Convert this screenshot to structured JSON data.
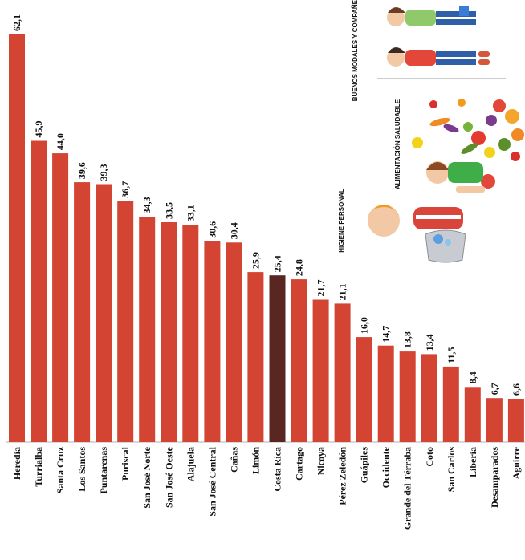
{
  "chart_data": {
    "type": "bar",
    "orientation": "vertical",
    "categories": [
      "Heredia",
      "Turrialba",
      "Santa Cruz",
      "Los Santos",
      "Puntarenas",
      "Puriscal",
      "San José Norte",
      "San José Oeste",
      "Alajuela",
      "San José Central",
      "Cañas",
      "Limón",
      "Costa Rica",
      "Cartago",
      "Nicoya",
      "Pérez Zeledón",
      "Guápiles",
      "Occidente",
      "Grande del Térraba",
      "Coto",
      "San Carlos",
      "Liberia",
      "Desamparados",
      "Aguirre"
    ],
    "values": [
      62.1,
      45.9,
      44.0,
      39.6,
      39.3,
      36.7,
      34.3,
      33.5,
      33.1,
      30.6,
      30.4,
      25.9,
      25.4,
      24.8,
      21.7,
      21.1,
      16.0,
      14.7,
      13.8,
      13.4,
      11.5,
      8.4,
      6.7,
      6.6
    ],
    "value_labels": [
      "62,1",
      "45,9",
      "44,0",
      "39,6",
      "39,3",
      "36,7",
      "34,3",
      "33,5",
      "33,1",
      "30,6",
      "30,4",
      "25,9",
      "25,4",
      "24,8",
      "21,7",
      "21,1",
      "16,0",
      "14,7",
      "13,8",
      "13,4",
      "11,5",
      "8,4",
      "6,7",
      "6,6"
    ],
    "highlight_category": "Costa Rica",
    "ylim": [
      0,
      62.1
    ],
    "grid": false,
    "legend": "none",
    "colors": {
      "bar": "#d34432",
      "highlight": "#5a2622",
      "axis": "#b0b0b0"
    }
  },
  "illustrations": [
    {
      "name": "good-manners-illustration",
      "caption": "BUENOS MODALES Y COMPAÑERISMO"
    },
    {
      "name": "healthy-eating-illustration",
      "caption": "ALIMENTACIÓN SALUDABLE"
    },
    {
      "name": "personal-hygiene-illustration",
      "caption": "HIGIENE PERSONAL"
    }
  ]
}
